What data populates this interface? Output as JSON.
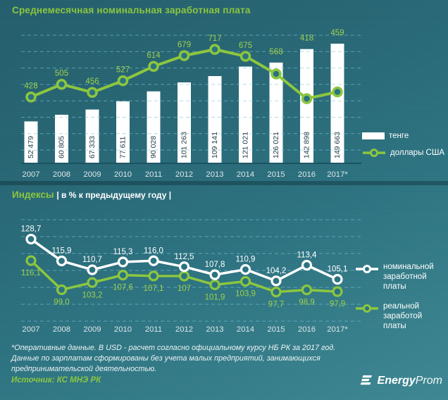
{
  "colors": {
    "accent_green": "#8CC63F",
    "background_teal": "#2C7280",
    "grid_dash": "#7CC3D8",
    "marker_fill": "#2B7380"
  },
  "chart_data": [
    {
      "type": "bar",
      "title": "Среднемесячная номинальная заработная плата",
      "categories": [
        "2007",
        "2008",
        "2009",
        "2010",
        "2011",
        "2012",
        "2013",
        "2014",
        "2015",
        "2016",
        "2017*"
      ],
      "series": [
        {
          "name": "тенге",
          "type": "bar",
          "color": "#FFFFFF",
          "values": [
            52479,
            60805,
            67333,
            77611,
            90028,
            101263,
            109141,
            121021,
            126021,
            142898,
            149663
          ],
          "labels": [
            "52 479",
            "60 805",
            "67 333",
            "77 611",
            "90 028",
            "101 263",
            "109 141",
            "121 021",
            "126 021",
            "142 898",
            "149 663"
          ]
        },
        {
          "name": "доллары США",
          "type": "line",
          "color": "#8CC63F",
          "values": [
            428,
            505,
            456,
            527,
            614,
            679,
            717,
            675,
            568,
            418,
            459
          ],
          "labels": [
            "428",
            "505",
            "456",
            "527",
            "614",
            "679",
            "717",
            "675",
            "568",
            "418",
            "459"
          ]
        }
      ],
      "grid": true,
      "legend_position": "right"
    },
    {
      "type": "line",
      "title": "Индексы",
      "subtitle": "| в % к предыдущему году |",
      "categories": [
        "2007",
        "2008",
        "2009",
        "2010",
        "2011",
        "2012",
        "2013",
        "2014",
        "2015",
        "2016",
        "2017*"
      ],
      "series": [
        {
          "name": "номинальной заработной платы",
          "color": "#FFFFFF",
          "values": [
            128.7,
            115.9,
            110.7,
            115.3,
            116.0,
            112.5,
            107.8,
            110.9,
            104.2,
            113.4,
            105.1
          ],
          "labels": [
            "128,7",
            "115,9",
            "110,7",
            "115,3",
            "116,0",
            "112,5",
            "107,8",
            "110,9",
            "104,2",
            "113,4",
            "105,1"
          ]
        },
        {
          "name": "реальной заработой платы",
          "color": "#8CC63F",
          "values": [
            116.1,
            99.0,
            103.2,
            107.6,
            107.1,
            107,
            101.9,
            103.9,
            97.7,
            98.9,
            97.9
          ],
          "labels": [
            "116,1",
            "99,0",
            "103,2",
            "107,6",
            "107,1",
            "107",
            "101,9",
            "103,9",
            "97,7",
            "98,9",
            "97,9"
          ]
        }
      ],
      "grid": true,
      "legend_position": "right"
    }
  ],
  "footnote": {
    "lines": [
      "*Оперативные данные. В USD - расчет согласно официальному курсу НБ РК за 2017 год.",
      "Данные по зарплатам сформированы без учета малых предприятий, занимающихся",
      "предпринимательской деятельностью."
    ]
  },
  "source": "Источник: КС МНЭ РК",
  "logo": {
    "energy": "Energy",
    "prom": "Prom"
  }
}
